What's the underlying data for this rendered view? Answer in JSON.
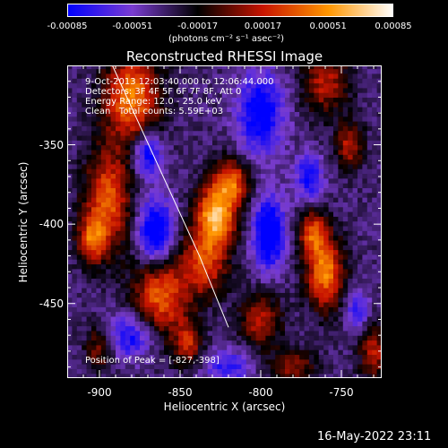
{
  "chart_data": {
    "type": "heatmap",
    "title": "Reconstructed RHESSI Image",
    "xlabel": "Heliocentric X (arcsec)",
    "ylabel": "Heliocentric Y (arcsec)",
    "xlim": [
      -920,
      -725
    ],
    "ylim": [
      -497,
      -300
    ],
    "xticks": [
      -900,
      -850,
      -800,
      -750
    ],
    "yticks": [
      -350,
      -400,
      -450
    ],
    "xtick_labels": [
      "-900",
      "-850",
      "-800",
      "-750"
    ],
    "ytick_labels": [
      "-350",
      "-400",
      "-450"
    ],
    "colorbar": {
      "range": [
        -0.00085,
        0.00085
      ],
      "tick_values": [
        -0.00085,
        -0.00051,
        -0.00017,
        0.00017,
        0.00051,
        0.00085
      ],
      "tick_labels": [
        "-0.00085",
        "-0.00051",
        "-0.00017",
        "0.00017",
        "0.00051",
        "0.00085"
      ],
      "unit_label": "(photons cm⁻² s⁻¹ asec⁻²)",
      "colors": [
        "#0000ff",
        "#7a3cd0",
        "#000000",
        "#c81400",
        "#ff9600",
        "#ffffff"
      ]
    },
    "annotations": [
      "9-Oct-2013 12:03:40.000 to 12:06:44.000",
      "Detectors: 3F 4F 5F 6F 7F 8F, Att 0",
      "Energy Range: 12.0 - 25.0 keV",
      "Clean   Total counts: 5.59E+03"
    ],
    "peak_label": "Position of Peak = [-827,-398]",
    "peak": {
      "x": -827,
      "y": -398
    },
    "limb_line": [
      [
        -892,
        -300
      ],
      [
        -838,
        -420
      ],
      [
        -820,
        -465
      ]
    ],
    "blobs": [
      {
        "x": -880,
        "y": -320,
        "sx": 12,
        "sy": 20,
        "amp": 0.0008
      },
      {
        "x": -895,
        "y": -385,
        "sx": 10,
        "sy": 22,
        "amp": 0.0007
      },
      {
        "x": -905,
        "y": -410,
        "sx": 6,
        "sy": 10,
        "amp": 0.0006
      },
      {
        "x": -862,
        "y": -445,
        "sx": 12,
        "sy": 18,
        "amp": 0.0007
      },
      {
        "x": -845,
        "y": -475,
        "sx": 6,
        "sy": 10,
        "amp": 0.0005
      },
      {
        "x": -828,
        "y": -395,
        "sx": 9,
        "sy": 13,
        "amp": 0.00095
      },
      {
        "x": -818,
        "y": -373,
        "sx": 8,
        "sy": 10,
        "amp": 0.0007
      },
      {
        "x": -835,
        "y": -425,
        "sx": 10,
        "sy": 14,
        "amp": 0.0006
      },
      {
        "x": -760,
        "y": -430,
        "sx": 8,
        "sy": 16,
        "amp": 0.0008
      },
      {
        "x": -768,
        "y": -405,
        "sx": 6,
        "sy": 10,
        "amp": 0.0006
      },
      {
        "x": -760,
        "y": -310,
        "sx": 10,
        "sy": 14,
        "amp": 0.0005
      },
      {
        "x": -745,
        "y": -350,
        "sx": 6,
        "sy": 10,
        "amp": 0.0005
      },
      {
        "x": -800,
        "y": -460,
        "sx": 9,
        "sy": 12,
        "amp": 0.0005
      },
      {
        "x": -780,
        "y": -490,
        "sx": 10,
        "sy": 8,
        "amp": 0.0004
      },
      {
        "x": -730,
        "y": -480,
        "sx": 6,
        "sy": 12,
        "amp": 0.0005
      },
      {
        "x": -900,
        "y": -478,
        "sx": 6,
        "sy": 10,
        "amp": 0.0004
      },
      {
        "x": -870,
        "y": -355,
        "sx": 6,
        "sy": 10,
        "amp": -0.0006
      },
      {
        "x": -865,
        "y": -405,
        "sx": 8,
        "sy": 14,
        "amp": -0.0007
      },
      {
        "x": -800,
        "y": -330,
        "sx": 10,
        "sy": 18,
        "amp": -0.0006
      },
      {
        "x": -795,
        "y": -405,
        "sx": 7,
        "sy": 16,
        "amp": -0.0007
      },
      {
        "x": -770,
        "y": -370,
        "sx": 6,
        "sy": 10,
        "amp": -0.0005
      },
      {
        "x": -880,
        "y": -470,
        "sx": 10,
        "sy": 10,
        "amp": -0.0005
      },
      {
        "x": -820,
        "y": -490,
        "sx": 10,
        "sy": 8,
        "amp": -0.0004
      },
      {
        "x": -740,
        "y": -455,
        "sx": 5,
        "sy": 8,
        "amp": -0.0004
      }
    ]
  },
  "footer": {
    "timestamp": "16-May-2022 23:11"
  }
}
